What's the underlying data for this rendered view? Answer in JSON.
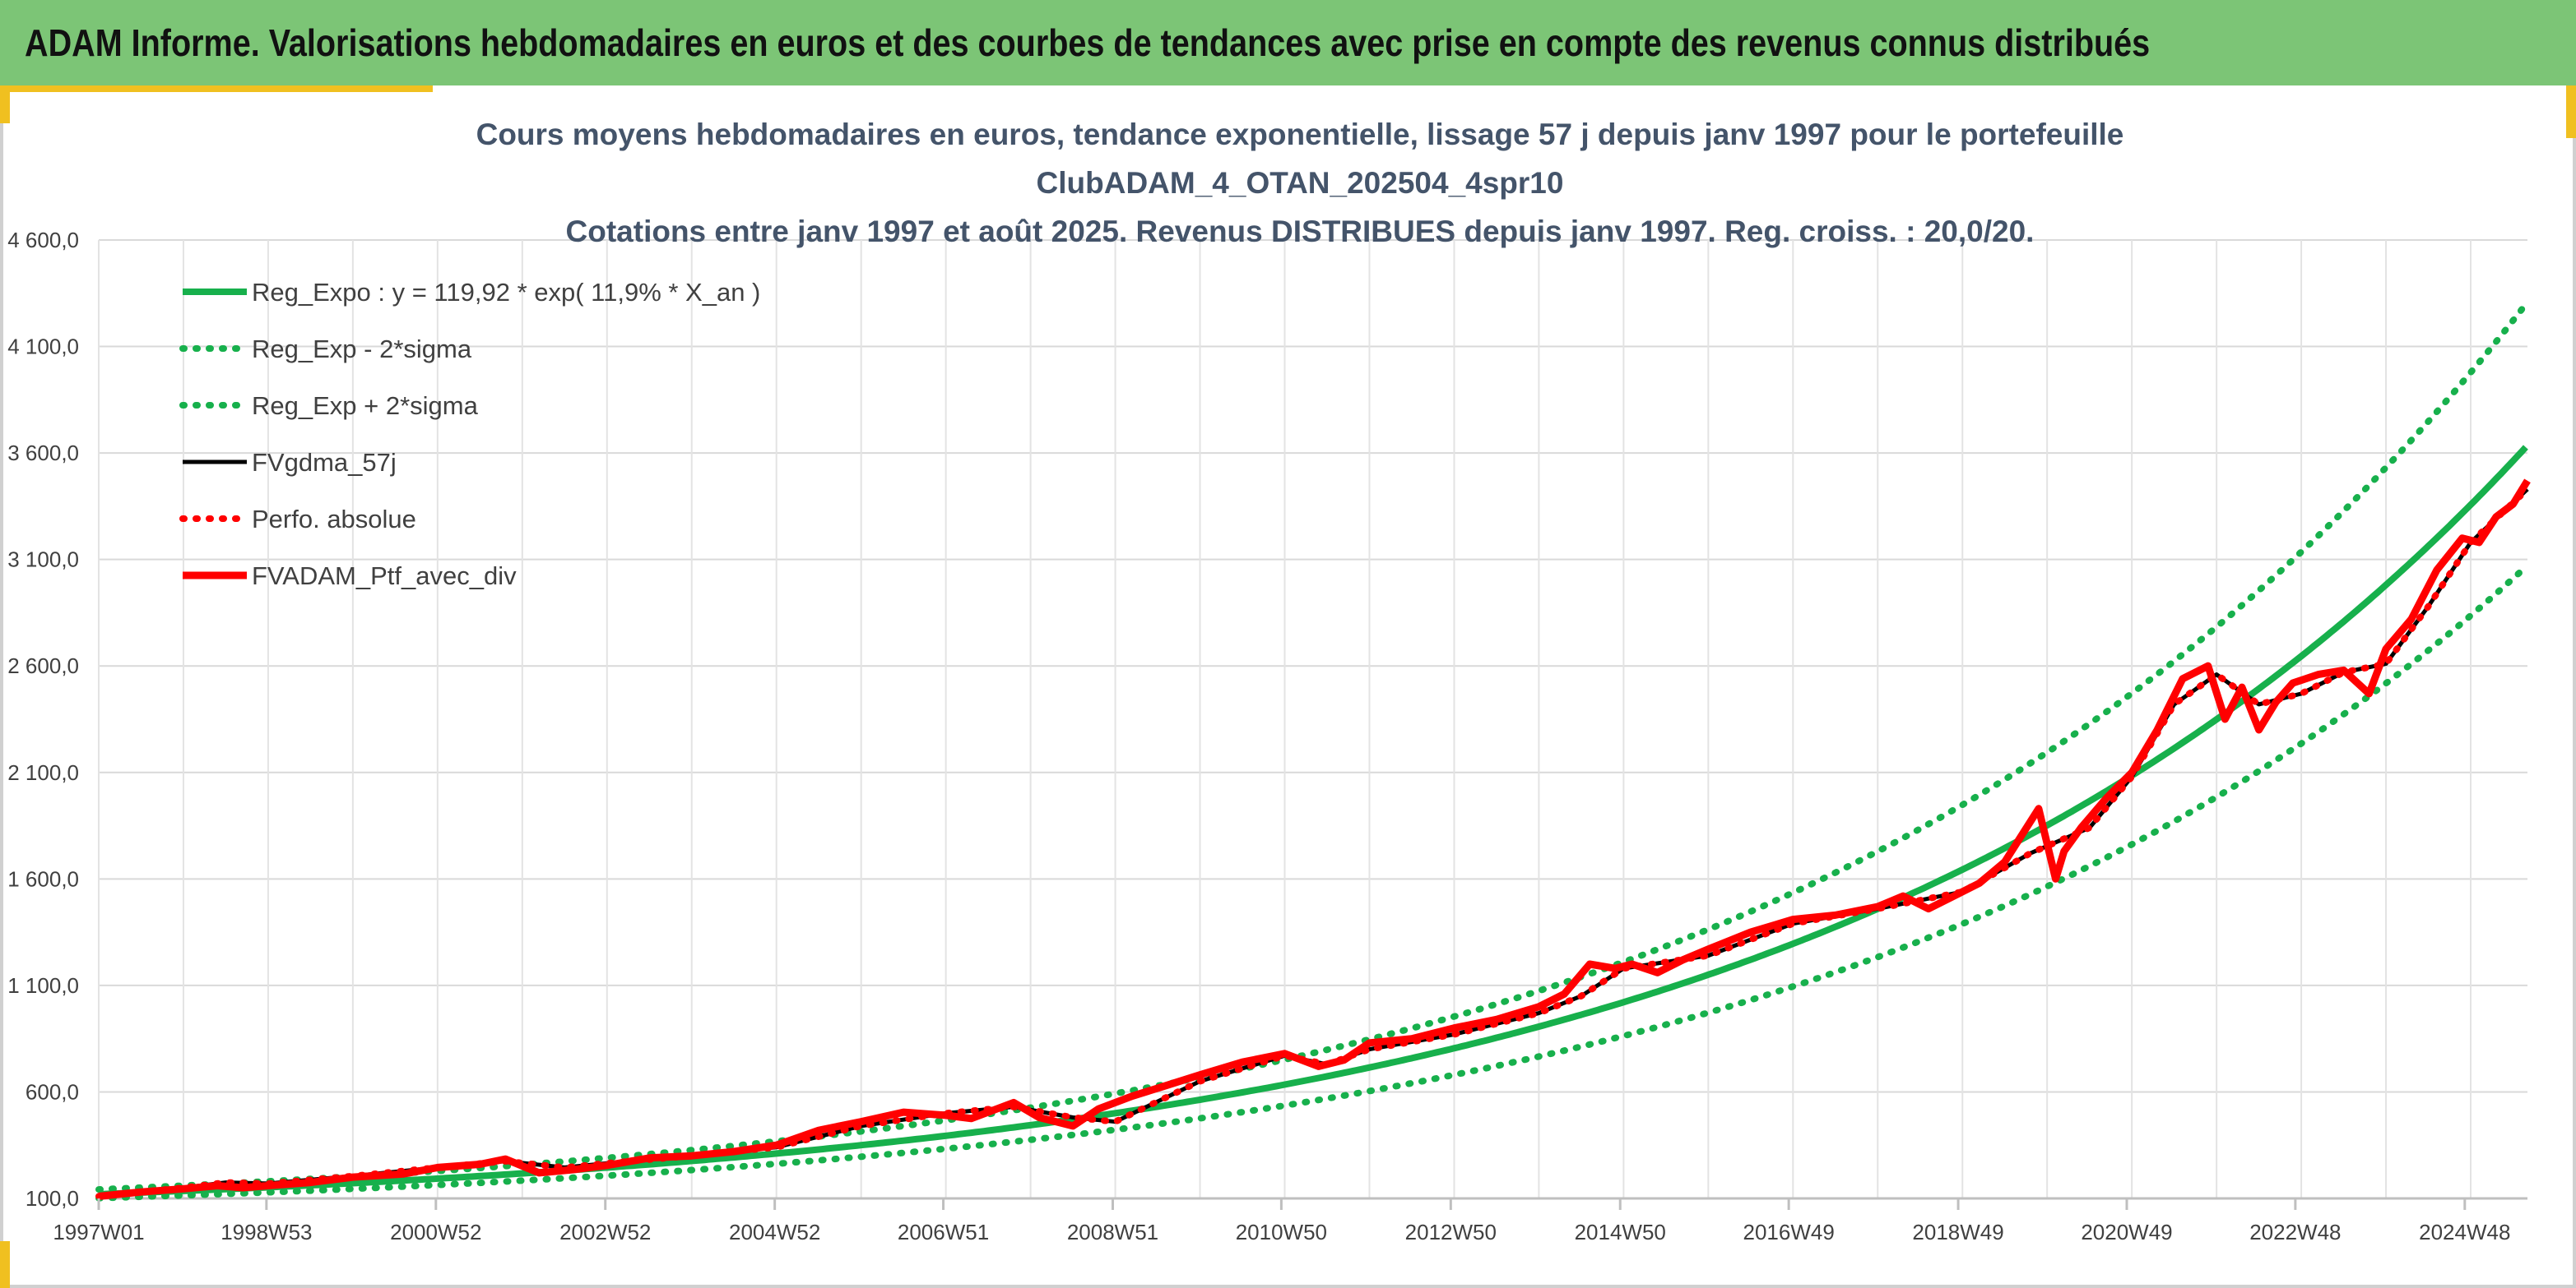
{
  "banner": {
    "title": "ADAM Informe. Valorisations hebdomadaires en euros et des courbes de tendances avec prise en compte des revenus connus distribués"
  },
  "colors": {
    "banner_bg": "#7cc576",
    "accent": "#f0c020",
    "trend_green": "#17b04c",
    "perf_red": "#ff0000",
    "black": "#000000",
    "title_text": "#44546a"
  },
  "chart_data": {
    "type": "line",
    "title_lines": [
      "Cours moyens hebdomadaires en euros, tendance exponentielle, lissage 57 j depuis janv 1997 pour le portefeuille",
      "ClubADAM_4_OTAN_202504_4spr10",
      "Cotations entre janv 1997 et août 2025. Revenus DISTRIBUES depuis janv 1997. Reg. croiss. : 20,0/20."
    ],
    "xlabel": "",
    "ylabel": "",
    "x_range": [
      1997.0,
      2025.67
    ],
    "ylim": [
      100,
      4600
    ],
    "y_ticks": [
      100,
      600,
      1100,
      1600,
      2100,
      2600,
      3100,
      3600,
      4100,
      4600
    ],
    "y_tick_labels": [
      "100,0",
      "600,0",
      "1 100,0",
      "1 600,0",
      "2 100,0",
      "2 600,0",
      "3 100,0",
      "3 600,0",
      "4 100,0",
      "4 600,0"
    ],
    "x_ticks": [
      1997.0,
      1998.98,
      2000.98,
      2002.98,
      2004.98,
      2006.97,
      2008.97,
      2010.96,
      2012.96,
      2014.96,
      2016.95,
      2018.95,
      2020.94,
      2022.93,
      2024.93
    ],
    "x_tick_labels": [
      "1997W01",
      "1998W53",
      "2000W52",
      "2002W52",
      "2004W52",
      "2006W51",
      "2008W51",
      "2010W50",
      "2012W50",
      "2014W50",
      "2016W49",
      "2018W49",
      "2020W49",
      "2022W48",
      "2024W48"
    ],
    "grid": true,
    "legend_position": "top-left",
    "legend": [
      "Reg_Expo : y = 119,92 * exp( 11,9% *  X_an )",
      "Reg_Exp - 2*sigma",
      "Reg_Exp + 2*sigma",
      "FVgdma_57j",
      "Perfo. absolue",
      "FVADAM_Ptf_avec_div"
    ],
    "trend": {
      "a": 119.92,
      "r": 0.119,
      "x0": 1997.0
    },
    "series": [
      {
        "name": "Reg_Expo : y = 119,92 * exp( 11,9% *  X_an )",
        "style": "solid",
        "color": "#17b04c",
        "formula": "trend"
      },
      {
        "name": "Reg_Exp - 2*sigma",
        "style": "dotted",
        "color": "#17b04c",
        "formula": "trend_lower"
      },
      {
        "name": "Reg_Exp + 2*sigma",
        "style": "dotted",
        "color": "#17b04c",
        "formula": "trend_upper"
      },
      {
        "name": "FVgdma_57j",
        "style": "solid",
        "color": "#000000",
        "x": [
          1997.0,
          1998.0,
          1998.5,
          1999.0,
          2000.0,
          2001.0,
          2001.8,
          2002.5,
          2003.0,
          2004.0,
          2005.0,
          2006.0,
          2007.0,
          2007.8,
          2008.5,
          2009.0,
          2010.0,
          2011.0,
          2011.5,
          2012.0,
          2013.0,
          2014.0,
          2014.5,
          2015.0,
          2016.0,
          2017.0,
          2018.0,
          2019.0,
          2019.8,
          2020.5,
          2021.0,
          2021.5,
          2022.0,
          2022.5,
          2023.0,
          2023.5,
          2024.0,
          2024.5,
          2025.0,
          2025.67
        ],
        "values": [
          110,
          150,
          175,
          170,
          205,
          245,
          275,
          245,
          265,
          300,
          340,
          440,
          500,
          530,
          480,
          460,
          650,
          770,
          730,
          800,
          870,
          970,
          1050,
          1180,
          1240,
          1390,
          1460,
          1540,
          1720,
          1840,
          2080,
          2420,
          2560,
          2420,
          2470,
          2570,
          2610,
          2880,
          3180,
          3430
        ]
      },
      {
        "name": "Perfo. absolue",
        "style": "dotted",
        "color": "#ff0000",
        "x": [
          1997.0,
          1998.0,
          1998.5,
          1999.0,
          2000.0,
          2001.0,
          2001.8,
          2002.5,
          2003.0,
          2004.0,
          2005.0,
          2006.0,
          2007.0,
          2007.8,
          2008.5,
          2009.0,
          2010.0,
          2011.0,
          2011.5,
          2012.0,
          2013.0,
          2014.0,
          2014.5,
          2015.0,
          2016.0,
          2017.0,
          2018.0,
          2019.0,
          2019.8,
          2020.5,
          2021.0,
          2021.5,
          2022.0,
          2022.5,
          2023.0,
          2023.5,
          2024.0,
          2024.5,
          2025.0,
          2025.67
        ],
        "values": [
          110,
          150,
          175,
          170,
          205,
          245,
          275,
          245,
          265,
          300,
          340,
          440,
          500,
          530,
          480,
          460,
          650,
          770,
          730,
          800,
          870,
          970,
          1050,
          1180,
          1240,
          1390,
          1460,
          1540,
          1720,
          1840,
          2080,
          2420,
          2560,
          2420,
          2470,
          2570,
          2610,
          2880,
          3180,
          3430
        ]
      },
      {
        "name": "FVADAM_Ptf_avec_div",
        "style": "solid",
        "color": "#ff0000",
        "x": [
          1997.0,
          1997.5,
          1998.0,
          1998.4,
          1998.7,
          1999.0,
          1999.5,
          2000.0,
          2000.6,
          2001.0,
          2001.5,
          2001.8,
          2002.2,
          2002.6,
          2003.0,
          2003.5,
          2004.0,
          2004.5,
          2005.0,
          2005.5,
          2006.0,
          2006.5,
          2007.0,
          2007.3,
          2007.8,
          2008.1,
          2008.5,
          2008.8,
          2009.2,
          2009.6,
          2010.0,
          2010.5,
          2011.0,
          2011.4,
          2011.7,
          2012.0,
          2012.5,
          2013.0,
          2013.5,
          2014.0,
          2014.3,
          2014.6,
          2014.9,
          2015.1,
          2015.4,
          2015.7,
          2016.0,
          2016.5,
          2017.0,
          2017.5,
          2018.0,
          2018.3,
          2018.6,
          2018.9,
          2019.2,
          2019.5,
          2019.9,
          2020.1,
          2020.2,
          2020.4,
          2020.7,
          2021.0,
          2021.3,
          2021.6,
          2021.9,
          2022.1,
          2022.3,
          2022.5,
          2022.7,
          2022.9,
          2023.2,
          2023.5,
          2023.8,
          2024.0,
          2024.3,
          2024.6,
          2024.9,
          2025.1,
          2025.3,
          2025.5,
          2025.67
        ],
        "values": [
          110,
          130,
          145,
          160,
          150,
          160,
          175,
          200,
          215,
          245,
          260,
          285,
          220,
          235,
          255,
          290,
          300,
          320,
          350,
          420,
          460,
          505,
          490,
          475,
          550,
          480,
          440,
          520,
          580,
          630,
          680,
          740,
          780,
          720,
          750,
          830,
          850,
          900,
          940,
          1000,
          1060,
          1200,
          1180,
          1200,
          1160,
          1220,
          1270,
          1350,
          1410,
          1430,
          1470,
          1520,
          1460,
          1520,
          1580,
          1680,
          1930,
          1600,
          1730,
          1840,
          1980,
          2100,
          2300,
          2540,
          2600,
          2350,
          2500,
          2300,
          2430,
          2520,
          2560,
          2580,
          2470,
          2680,
          2820,
          3050,
          3200,
          3180,
          3300,
          3360,
          3470
        ]
      }
    ]
  }
}
